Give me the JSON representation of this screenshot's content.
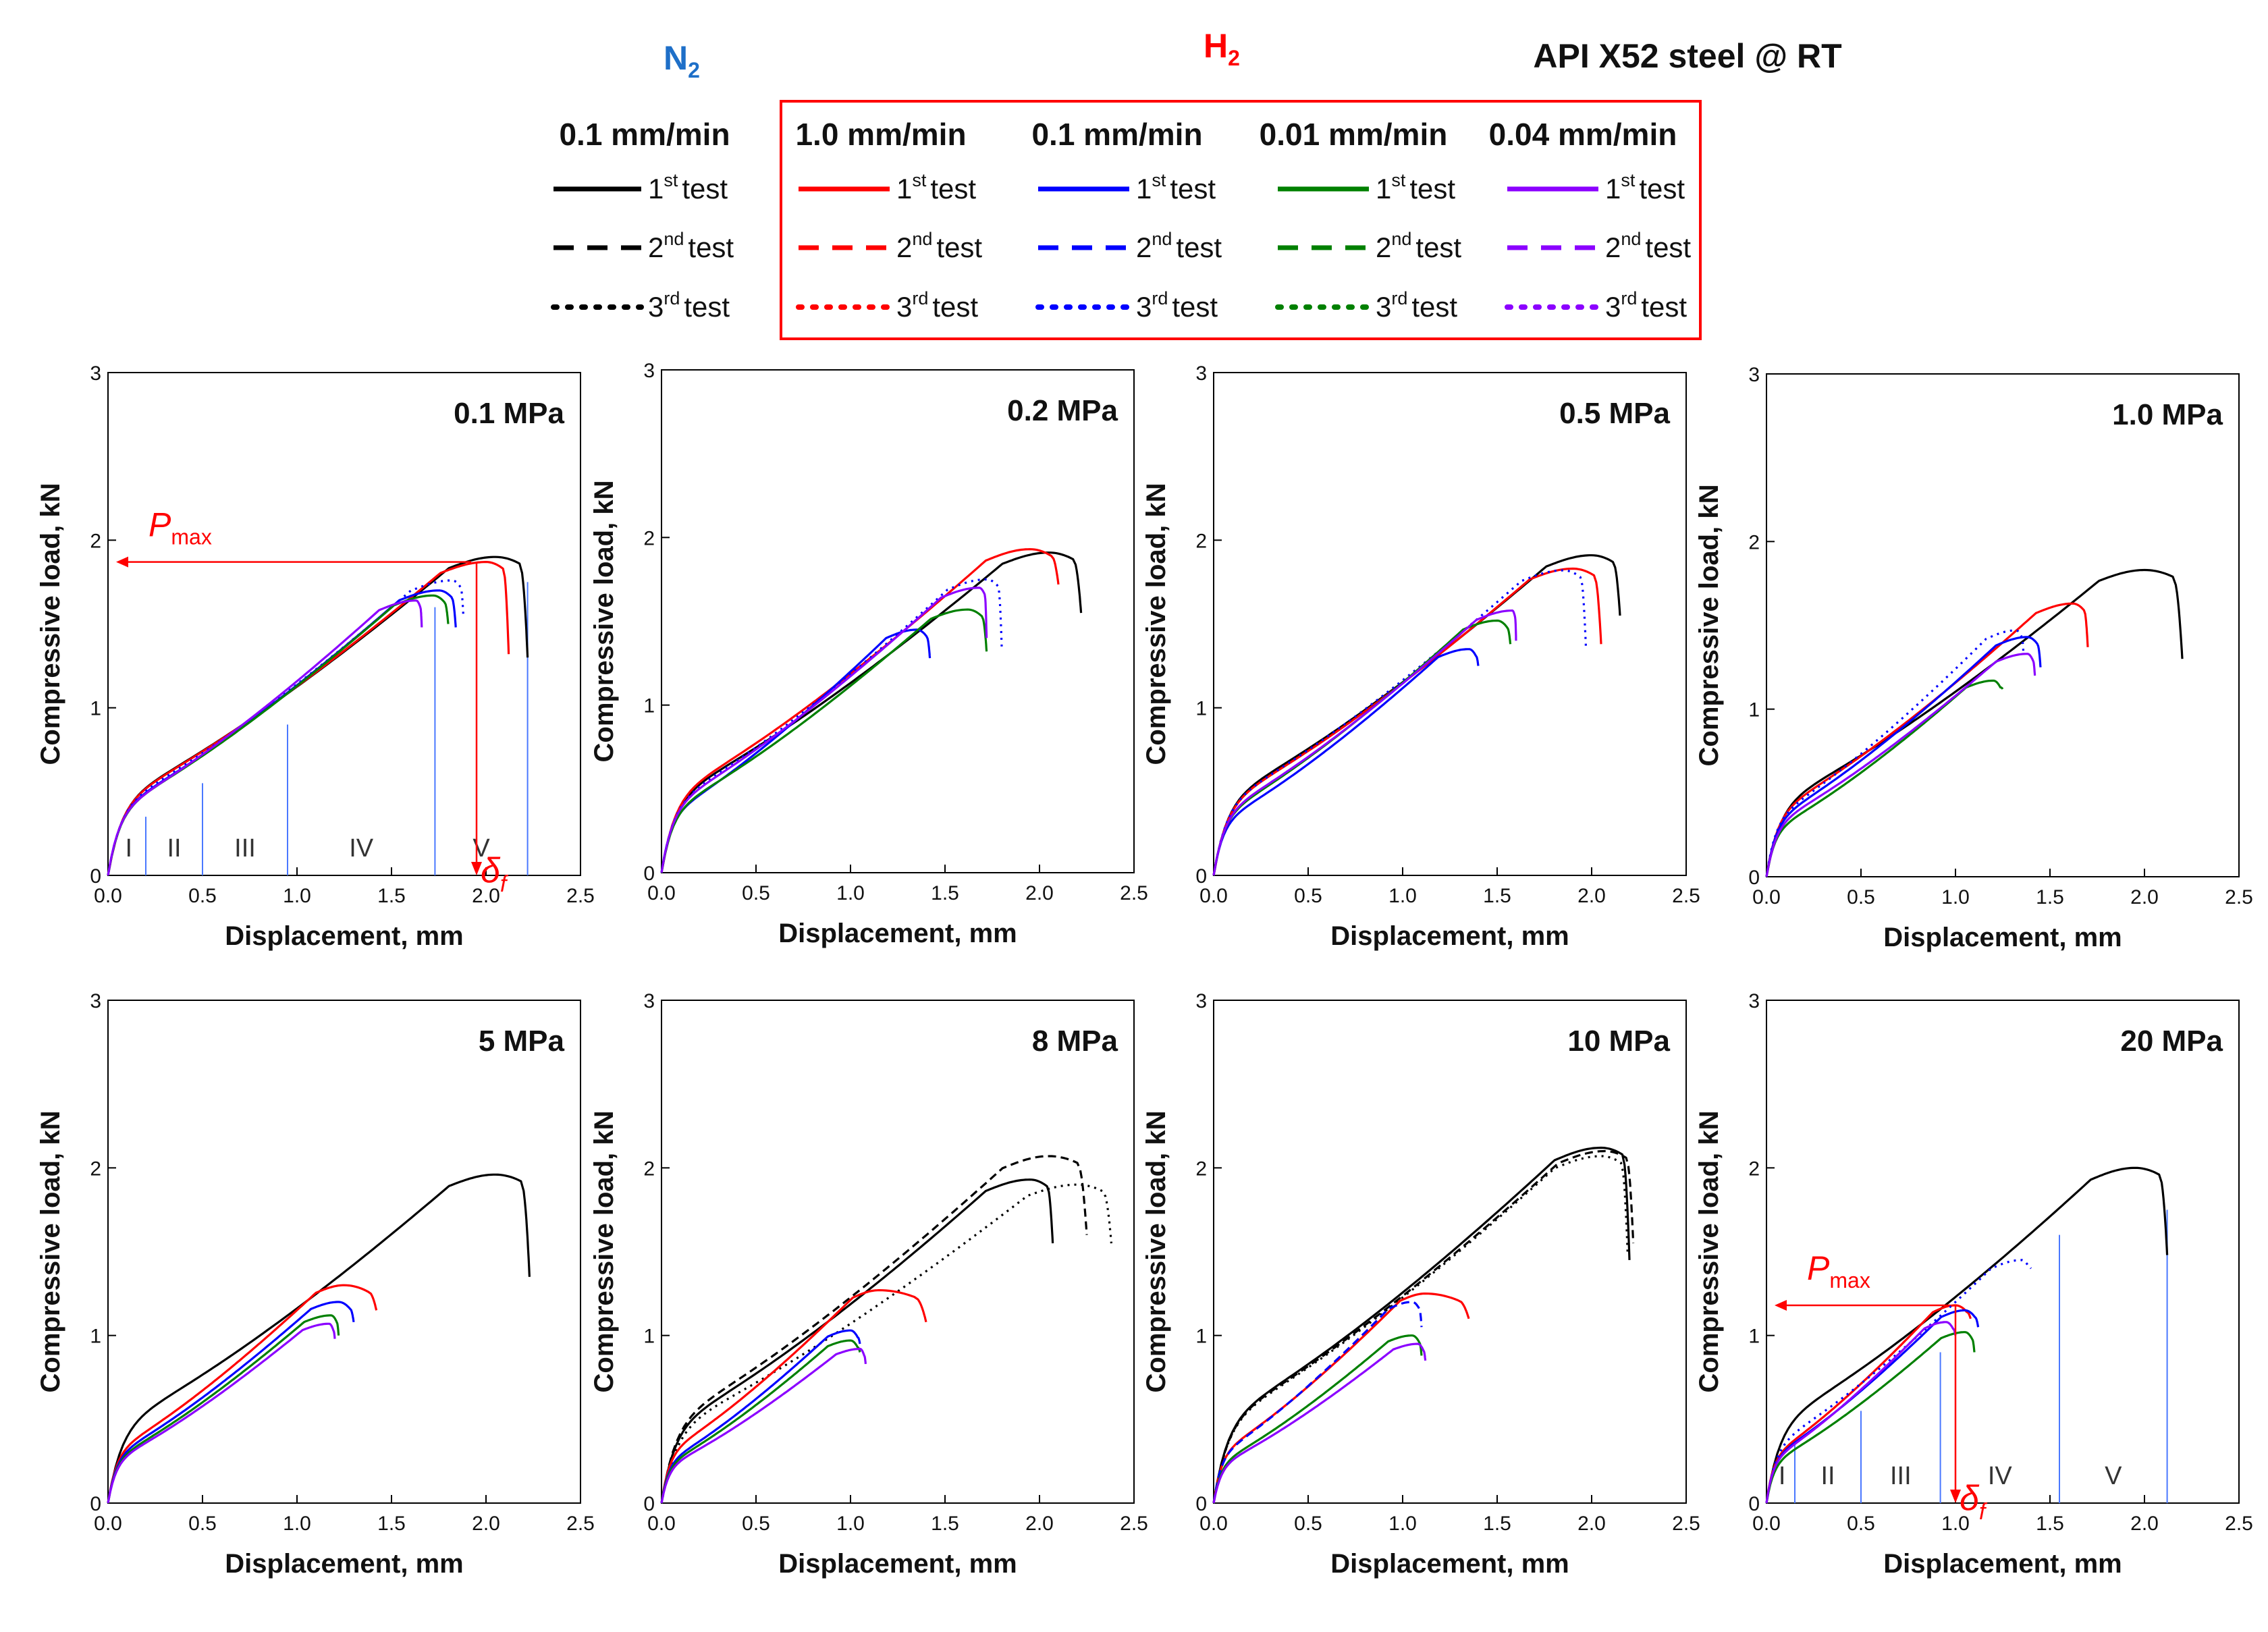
{
  "legend": {
    "gas_n2": "N",
    "gas_n2_sub": "2",
    "gas_h2": "H",
    "gas_h2_sub": "2",
    "material": "API X52 steel @ RT",
    "n2_rate": "0.1 mm/min",
    "h2_rates": [
      "1.0 mm/min",
      "0.1 mm/min",
      "0.01 mm/min",
      "0.04 mm/min"
    ],
    "tests": [
      {
        "num": "1",
        "sup": "st",
        "word": "test"
      },
      {
        "num": "2",
        "sup": "nd",
        "word": "test"
      },
      {
        "num": "3",
        "sup": "rd",
        "word": "test"
      }
    ]
  },
  "colors": {
    "n2": "#000000",
    "rate_1_0": "#ff0000",
    "rate_0_1": "#0000ff",
    "rate_0_01": "#008000",
    "rate_0_04": "#8b00ff",
    "annotation": "#ff0000",
    "frame": "#ff0000"
  },
  "annotations": {
    "p_letter": "P",
    "p_sub": "max",
    "delta_letter": "δ",
    "delta_sub": "f",
    "regions": [
      "I",
      "II",
      "III",
      "IV",
      "V"
    ]
  },
  "chart_data": [
    {
      "type": "line",
      "title": "0.1 MPa",
      "xlabel": "Displacement, mm",
      "ylabel": "Compressive load, kN",
      "xlim": [
        0,
        2.5
      ],
      "ylim": [
        0,
        3
      ],
      "xticks": [
        "0.0",
        "0.5",
        "1.0",
        "1.5",
        "2.0",
        "2.5"
      ],
      "yticks": [
        "0",
        "1",
        "2",
        "3"
      ],
      "series": [
        {
          "name": "N2 0.1 mm/min 1st test",
          "peak": [
            2.05,
            1.9
          ],
          "end": [
            2.22,
            1.3
          ]
        },
        {
          "name": "H2 1.0 mm/min 1st test",
          "peak": [
            2.0,
            1.87
          ],
          "end": [
            2.12,
            1.32
          ]
        },
        {
          "name": "H2 0.1 mm/min 1st test",
          "peak": [
            1.75,
            1.7
          ],
          "end": [
            1.84,
            1.48
          ]
        },
        {
          "name": "H2 0.1 mm/min 3rd test",
          "peak": [
            1.82,
            1.76
          ],
          "end": [
            1.88,
            1.55
          ]
        },
        {
          "name": "H2 0.01 mm/min 1st test",
          "peak": [
            1.72,
            1.67
          ],
          "end": [
            1.8,
            1.5
          ]
        },
        {
          "name": "H2 0.04 mm/min 1st test",
          "peak": [
            1.63,
            1.64
          ],
          "end": [
            1.66,
            1.48
          ]
        }
      ],
      "annotation": {
        "pmax_kN": 1.87,
        "delta_f_mm": 1.95,
        "region_bounds_mm": [
          0.2,
          0.5,
          0.95,
          1.73,
          2.22
        ]
      }
    },
    {
      "type": "line",
      "title": "0.2 MPa",
      "xlabel": "Displacement, mm",
      "ylabel": "Compressive load, kN",
      "xlim": [
        0,
        2.5
      ],
      "ylim": [
        0,
        3
      ],
      "xticks": [
        "0.0",
        "0.5",
        "1.0",
        "1.5",
        "2.0",
        "2.5"
      ],
      "yticks": [
        "0",
        "1",
        "2",
        "3"
      ],
      "series": [
        {
          "name": "N2 0.1 mm/min 1st test",
          "peak": [
            2.05,
            1.91
          ],
          "end": [
            2.22,
            1.55
          ]
        },
        {
          "name": "H2 1.0 mm/min 1st test",
          "peak": [
            1.95,
            1.93
          ],
          "end": [
            2.1,
            1.72
          ]
        },
        {
          "name": "H2 0.1 mm/min 1st test",
          "peak": [
            1.35,
            1.45
          ],
          "end": [
            1.42,
            1.28
          ]
        },
        {
          "name": "H2 0.1 mm/min 3rd test",
          "peak": [
            1.72,
            1.75
          ],
          "end": [
            1.8,
            1.35
          ]
        },
        {
          "name": "H2 0.01 mm/min 1st test",
          "peak": [
            1.62,
            1.57
          ],
          "end": [
            1.72,
            1.32
          ]
        },
        {
          "name": "H2 0.04 mm/min 1st test",
          "peak": [
            1.68,
            1.7
          ],
          "end": [
            1.72,
            1.4
          ]
        }
      ]
    },
    {
      "type": "line",
      "title": "0.5 MPa",
      "xlabel": "Displacement, mm",
      "ylabel": "Compressive load, kN",
      "xlim": [
        0,
        2.5
      ],
      "ylim": [
        0,
        3
      ],
      "xticks": [
        "0.0",
        "0.5",
        "1.0",
        "1.5",
        "2.0",
        "2.5"
      ],
      "yticks": [
        "0",
        "1",
        "2",
        "3"
      ],
      "series": [
        {
          "name": "N2 0.1 mm/min 1st test",
          "peak": [
            2.0,
            1.91
          ],
          "end": [
            2.15,
            1.55
          ]
        },
        {
          "name": "H2 1.0 mm/min 1st test",
          "peak": [
            1.9,
            1.83
          ],
          "end": [
            2.05,
            1.38
          ]
        },
        {
          "name": "H2 0.1 mm/min 3rd test",
          "peak": [
            1.85,
            1.82
          ],
          "end": [
            1.97,
            1.35
          ]
        },
        {
          "name": "H2 0.1 mm/min 1st test",
          "peak": [
            1.35,
            1.35
          ],
          "end": [
            1.4,
            1.25
          ]
        },
        {
          "name": "H2 0.01 mm/min 1st test",
          "peak": [
            1.5,
            1.52
          ],
          "end": [
            1.57,
            1.38
          ]
        },
        {
          "name": "H2 0.04 mm/min 1st test",
          "peak": [
            1.58,
            1.58
          ],
          "end": [
            1.6,
            1.4
          ]
        }
      ]
    },
    {
      "type": "line",
      "title": "1.0 MPa",
      "xlabel": "Displacement, mm",
      "ylabel": "Compressive load, kN",
      "xlim": [
        0,
        2.5
      ],
      "ylim": [
        0,
        3
      ],
      "xticks": [
        "0.0",
        "0.5",
        "1.0",
        "1.5",
        "2.0",
        "2.5"
      ],
      "yticks": [
        "0",
        "1",
        "2",
        "3"
      ],
      "series": [
        {
          "name": "N2 0.1 mm/min 1st test",
          "peak": [
            2.0,
            1.83
          ],
          "end": [
            2.2,
            1.3
          ]
        },
        {
          "name": "H2 1.0 mm/min 1st test",
          "peak": [
            1.62,
            1.63
          ],
          "end": [
            1.7,
            1.37
          ]
        },
        {
          "name": "H2 0.1 mm/min 1st test",
          "peak": [
            1.38,
            1.43
          ],
          "end": [
            1.45,
            1.25
          ]
        },
        {
          "name": "H2 0.1 mm/min 3rd test",
          "peak": [
            1.32,
            1.47
          ],
          "end": [
            1.36,
            1.33
          ]
        },
        {
          "name": "H2 0.01 mm/min 1st test",
          "peak": [
            1.2,
            1.17
          ],
          "end": [
            1.25,
            1.12
          ]
        },
        {
          "name": "H2 0.04 mm/min 1st test",
          "peak": [
            1.38,
            1.33
          ],
          "end": [
            1.42,
            1.2
          ]
        }
      ]
    },
    {
      "type": "line",
      "title": "5 MPa",
      "xlabel": "Displacement, mm",
      "ylabel": "Compressive load, kN",
      "xlim": [
        0,
        2.5
      ],
      "ylim": [
        0,
        3
      ],
      "xticks": [
        "0.0",
        "0.5",
        "1.0",
        "1.5",
        "2.0",
        "2.5"
      ],
      "yticks": [
        "0",
        "1",
        "2",
        "3"
      ],
      "series": [
        {
          "name": "N2 0.1 mm/min 1st test",
          "peak": [
            2.05,
            1.96
          ],
          "end": [
            2.23,
            1.35
          ]
        },
        {
          "name": "H2 1.0 mm/min 1st test",
          "peak": [
            1.25,
            1.3
          ],
          "end": [
            1.42,
            1.15
          ]
        },
        {
          "name": "H2 0.1 mm/min 1st test",
          "peak": [
            1.22,
            1.2
          ],
          "end": [
            1.3,
            1.08
          ]
        },
        {
          "name": "H2 0.01 mm/min 1st test",
          "peak": [
            1.18,
            1.12
          ],
          "end": [
            1.22,
            1.0
          ]
        },
        {
          "name": "H2 0.04 mm/min 1st test",
          "peak": [
            1.17,
            1.07
          ],
          "end": [
            1.2,
            0.98
          ]
        }
      ]
    },
    {
      "type": "line",
      "title": "8 MPa",
      "xlabel": "Displacement, mm",
      "ylabel": "Compressive load, kN",
      "xlim": [
        0,
        2.5
      ],
      "ylim": [
        0,
        3
      ],
      "xticks": [
        "0.0",
        "0.5",
        "1.0",
        "1.5",
        "2.0",
        "2.5"
      ],
      "yticks": [
        "0",
        "1",
        "2",
        "3"
      ],
      "series": [
        {
          "name": "N2 0.1 mm/min 1st test",
          "peak": [
            1.95,
            1.93
          ],
          "end": [
            2.07,
            1.55
          ]
        },
        {
          "name": "N2 0.1 mm/min 2nd test",
          "peak": [
            2.05,
            2.07
          ],
          "end": [
            2.25,
            1.6
          ]
        },
        {
          "name": "N2 0.1 mm/min 3rd test",
          "peak": [
            2.2,
            1.9
          ],
          "end": [
            2.38,
            1.55
          ]
        },
        {
          "name": "H2 1.0 mm/min 1st test",
          "peak": [
            1.15,
            1.27
          ],
          "end": [
            1.4,
            1.08
          ]
        },
        {
          "name": "H2 0.1 mm/min 1st test",
          "peak": [
            1.0,
            1.03
          ],
          "end": [
            1.05,
            0.95
          ]
        },
        {
          "name": "H2 0.01 mm/min 1st test",
          "peak": [
            1.0,
            0.97
          ],
          "end": [
            1.05,
            0.9
          ]
        },
        {
          "name": "H2 0.04 mm/min 1st test",
          "peak": [
            1.05,
            0.92
          ],
          "end": [
            1.08,
            0.83
          ]
        }
      ]
    },
    {
      "type": "line",
      "title": "10 MPa",
      "xlabel": "Displacement, mm",
      "ylabel": "Compressive load, kN",
      "xlim": [
        0,
        2.5
      ],
      "ylim": [
        0,
        3
      ],
      "xticks": [
        "0.0",
        "0.5",
        "1.0",
        "1.5",
        "2.0",
        "2.5"
      ],
      "yticks": [
        "0",
        "1",
        "2",
        "3"
      ],
      "series": [
        {
          "name": "N2 0.1 mm/min 1st test",
          "peak": [
            2.05,
            2.12
          ],
          "end": [
            2.2,
            1.45
          ]
        },
        {
          "name": "N2 0.1 mm/min 2nd test",
          "peak": [
            2.07,
            2.1
          ],
          "end": [
            2.22,
            1.55
          ]
        },
        {
          "name": "N2 0.1 mm/min 3rd test",
          "peak": [
            2.05,
            2.07
          ],
          "end": [
            2.19,
            1.5
          ]
        },
        {
          "name": "H2 1.0 mm/min 1st test",
          "peak": [
            1.12,
            1.25
          ],
          "end": [
            1.35,
            1.1
          ]
        },
        {
          "name": "H2 0.1 mm/min 2nd test",
          "peak": [
            1.05,
            1.2
          ],
          "end": [
            1.1,
            1.05
          ]
        },
        {
          "name": "H2 0.01 mm/min 1st test",
          "peak": [
            1.05,
            1.0
          ],
          "end": [
            1.1,
            0.88
          ]
        },
        {
          "name": "H2 0.04 mm/min 1st test",
          "peak": [
            1.08,
            0.95
          ],
          "end": [
            1.12,
            0.85
          ]
        }
      ]
    },
    {
      "type": "line",
      "title": "20 MPa",
      "xlabel": "Displacement, mm",
      "ylabel": "Compressive load, kN",
      "xlim": [
        0,
        2.5
      ],
      "ylim": [
        0,
        3
      ],
      "xticks": [
        "0.0",
        "0.5",
        "1.0",
        "1.5",
        "2.0",
        "2.5"
      ],
      "yticks": [
        "0",
        "1",
        "2",
        "3"
      ],
      "series": [
        {
          "name": "N2 0.1 mm/min 1st test",
          "peak": [
            1.95,
            2.0
          ],
          "end": [
            2.12,
            1.48
          ]
        },
        {
          "name": "H2 1.0 mm/min 1st test",
          "peak": [
            1.0,
            1.18
          ],
          "end": [
            1.08,
            1.1
          ]
        },
        {
          "name": "H2 0.1 mm/min 1st test",
          "peak": [
            1.05,
            1.15
          ],
          "end": [
            1.12,
            1.05
          ]
        },
        {
          "name": "H2 0.1 mm/min 3rd test",
          "peak": [
            1.35,
            1.45
          ],
          "end": [
            1.4,
            1.4
          ]
        },
        {
          "name": "H2 0.01 mm/min 1st test",
          "peak": [
            1.05,
            1.02
          ],
          "end": [
            1.1,
            0.9
          ]
        },
        {
          "name": "H2 0.04 mm/min 1st test",
          "peak": [
            0.95,
            1.08
          ],
          "end": [
            1.0,
            1.0
          ]
        }
      ],
      "annotation": {
        "pmax_kN": 1.18,
        "delta_f_mm": 1.0,
        "region_bounds_mm": [
          0.15,
          0.5,
          0.92,
          1.55,
          2.12
        ]
      }
    }
  ]
}
